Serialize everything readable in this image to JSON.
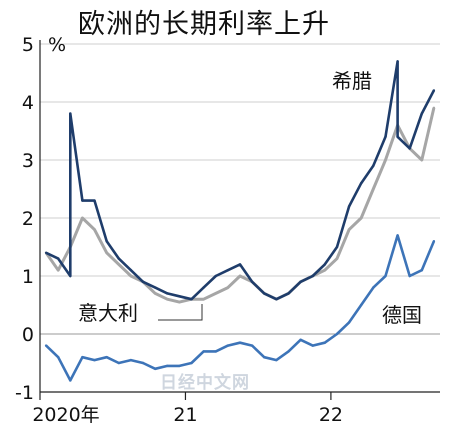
{
  "chart_data": {
    "type": "line",
    "title": "欧洲的长期利率上升",
    "y_unit": "%",
    "ylim": [
      -1,
      5
    ],
    "y_ticks": [
      "5",
      "4",
      "3",
      "2",
      "1",
      "0",
      "-1"
    ],
    "x_tick_labels": [
      "2020年",
      "21",
      "22"
    ],
    "x_domain": [
      "2020-01",
      "2022-09"
    ],
    "grid": "horizontal",
    "watermark": "日经中文网",
    "colors": {
      "greece": "#1f3d6b",
      "italy": "#a6a6a6",
      "germany": "#3d74b8",
      "grid": "#cfcfcf"
    },
    "series": [
      {
        "name": "希腊",
        "x": [
          "2020-01",
          "2020-02",
          "2020-03",
          "2020-03",
          "2020-04",
          "2020-05",
          "2020-06",
          "2020-07",
          "2020-08",
          "2020-09",
          "2020-10",
          "2020-11",
          "2020-12",
          "2021-01",
          "2021-02",
          "2021-03",
          "2021-04",
          "2021-05",
          "2021-06",
          "2021-07",
          "2021-08",
          "2021-09",
          "2021-10",
          "2021-11",
          "2021-12",
          "2022-01",
          "2022-02",
          "2022-03",
          "2022-04",
          "2022-05",
          "2022-06",
          "2022-06",
          "2022-07",
          "2022-08",
          "2022-09"
        ],
        "values": [
          1.4,
          1.3,
          1.0,
          3.8,
          2.3,
          2.3,
          1.6,
          1.3,
          1.1,
          0.9,
          0.8,
          0.7,
          0.65,
          0.6,
          0.8,
          1.0,
          1.1,
          1.2,
          0.9,
          0.7,
          0.6,
          0.7,
          0.9,
          1.0,
          1.2,
          1.5,
          2.2,
          2.6,
          2.9,
          3.4,
          4.7,
          3.4,
          3.2,
          3.8,
          4.2
        ]
      },
      {
        "name": "意大利",
        "x": [
          "2020-01",
          "2020-02",
          "2020-03",
          "2020-04",
          "2020-05",
          "2020-06",
          "2020-07",
          "2020-08",
          "2020-09",
          "2020-10",
          "2020-11",
          "2020-12",
          "2021-01",
          "2021-02",
          "2021-03",
          "2021-04",
          "2021-05",
          "2021-06",
          "2021-07",
          "2021-08",
          "2021-09",
          "2021-10",
          "2021-11",
          "2021-12",
          "2022-01",
          "2022-02",
          "2022-03",
          "2022-04",
          "2022-05",
          "2022-06",
          "2022-07",
          "2022-08",
          "2022-09"
        ],
        "values": [
          1.4,
          1.1,
          1.5,
          2.0,
          1.8,
          1.4,
          1.2,
          1.0,
          0.9,
          0.7,
          0.6,
          0.55,
          0.6,
          0.6,
          0.7,
          0.8,
          1.0,
          0.9,
          0.7,
          0.6,
          0.7,
          0.9,
          1.0,
          1.1,
          1.3,
          1.8,
          2.0,
          2.5,
          3.0,
          3.6,
          3.2,
          3.0,
          3.9
        ]
      },
      {
        "name": "德国",
        "x": [
          "2020-01",
          "2020-02",
          "2020-03",
          "2020-04",
          "2020-05",
          "2020-06",
          "2020-07",
          "2020-08",
          "2020-09",
          "2020-10",
          "2020-11",
          "2020-12",
          "2021-01",
          "2021-02",
          "2021-03",
          "2021-04",
          "2021-05",
          "2021-06",
          "2021-07",
          "2021-08",
          "2021-09",
          "2021-10",
          "2021-11",
          "2021-12",
          "2022-01",
          "2022-02",
          "2022-03",
          "2022-04",
          "2022-05",
          "2022-06",
          "2022-07",
          "2022-08",
          "2022-09"
        ],
        "values": [
          -0.2,
          -0.4,
          -0.8,
          -0.4,
          -0.45,
          -0.4,
          -0.5,
          -0.45,
          -0.5,
          -0.6,
          -0.55,
          -0.55,
          -0.5,
          -0.3,
          -0.3,
          -0.2,
          -0.15,
          -0.2,
          -0.4,
          -0.45,
          -0.3,
          -0.1,
          -0.2,
          -0.15,
          0.0,
          0.2,
          0.5,
          0.8,
          1.0,
          1.7,
          1.0,
          1.1,
          1.6
        ]
      }
    ]
  }
}
